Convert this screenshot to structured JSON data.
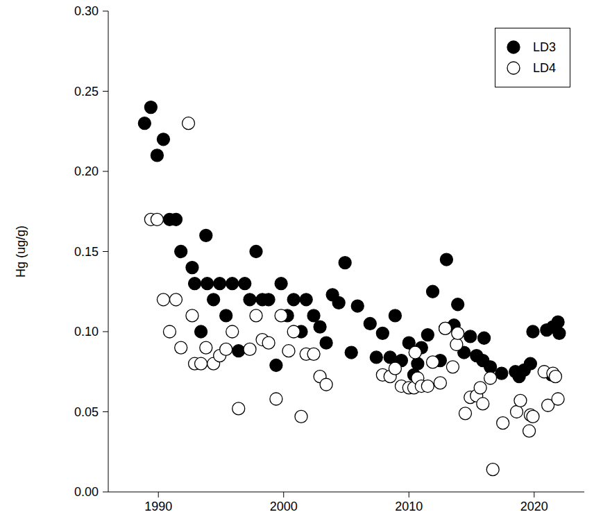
{
  "chart_data": {
    "type": "scatter",
    "ylabel": "Hg (ug/g)",
    "xlim": [
      1986,
      2024
    ],
    "xticks": [
      1990,
      2000,
      2010,
      2020
    ],
    "ylim": [
      0,
      0.3
    ],
    "yticks": [
      {
        "value": 0,
        "label": "0.00"
      },
      {
        "value": 0.05,
        "label": "0.05"
      },
      {
        "value": 0.1,
        "label": "0.10"
      },
      {
        "value": 0.15,
        "label": "0.15"
      },
      {
        "value": 0.2,
        "label": "0.20"
      },
      {
        "value": 0.25,
        "label": "0.25"
      },
      {
        "value": 0.3,
        "label": "0.30"
      }
    ],
    "grid": false,
    "legend": "top-right",
    "series": [
      {
        "name": "LD3",
        "color": "#000000",
        "marker": "filled_circle",
        "x": [
          1988.9,
          1989.4,
          1989.9,
          1990.4,
          1990.9,
          1991.4,
          1991.8,
          1992.7,
          1992.9,
          1993.4,
          1993.8,
          1993.9,
          1994.4,
          1994.9,
          1995.4,
          1995.9,
          1996.4,
          1996.9,
          1997.3,
          1997.8,
          1998.3,
          1998.8,
          1999.4,
          1999.8,
          2000.3,
          2000.8,
          2001.4,
          2001.8,
          2002.4,
          2002.9,
          2003.4,
          2003.9,
          2004.4,
          2004.9,
          2005.4,
          2005.9,
          2006.9,
          2007.4,
          2007.9,
          2008.5,
          2008.9,
          2009.4,
          2010.0,
          2010.4,
          2010.7,
          2011.0,
          2011.5,
          2011.9,
          2012.5,
          2012.9,
          2013.0,
          2013.6,
          2013.9,
          2014.4,
          2014.9,
          2015.4,
          2015.9,
          2016.0,
          2016.5,
          2017.4,
          2018.5,
          2018.8,
          2019.2,
          2019.7,
          2019.9,
          2021.0,
          2021.4,
          2021.5,
          2021.9,
          2022.0
        ],
        "values": [
          0.23,
          0.24,
          0.21,
          0.22,
          0.17,
          0.17,
          0.15,
          0.14,
          0.13,
          0.1,
          0.16,
          0.13,
          0.12,
          0.13,
          0.11,
          0.13,
          0.088,
          0.13,
          0.12,
          0.15,
          0.12,
          0.12,
          0.079,
          0.13,
          0.11,
          0.12,
          0.1,
          0.12,
          0.11,
          0.103,
          0.093,
          0.123,
          0.118,
          0.143,
          0.087,
          0.116,
          0.105,
          0.084,
          0.099,
          0.084,
          0.11,
          0.082,
          0.093,
          0.073,
          0.08,
          0.09,
          0.098,
          0.125,
          0.082,
          0.102,
          0.145,
          0.104,
          0.117,
          0.087,
          0.097,
          0.085,
          0.082,
          0.096,
          0.078,
          0.074,
          0.075,
          0.072,
          0.076,
          0.08,
          0.1,
          0.101,
          0.073,
          0.103,
          0.106,
          0.099
        ]
      },
      {
        "name": "LD4",
        "color": "#000000",
        "marker": "open_circle",
        "x": [
          1989.4,
          1989.9,
          1990.4,
          1990.9,
          1991.4,
          1991.8,
          1992.4,
          1992.7,
          1992.9,
          1993.4,
          1993.8,
          1994.4,
          1994.9,
          1995.4,
          1995.9,
          1996.4,
          1997.3,
          1997.8,
          1998.3,
          1998.8,
          1999.4,
          1999.8,
          2000.4,
          2000.8,
          2001.4,
          2001.8,
          2002.4,
          2002.9,
          2003.4,
          2007.9,
          2008.5,
          2008.9,
          2009.4,
          2010.0,
          2010.4,
          2010.5,
          2010.7,
          2011.0,
          2011.5,
          2011.9,
          2012.5,
          2012.9,
          2013.5,
          2013.8,
          2013.9,
          2014.5,
          2014.9,
          2015.4,
          2015.7,
          2015.9,
          2016.5,
          2016.7,
          2017.5,
          2018.6,
          2018.9,
          2019.6,
          2019.7,
          2019.9,
          2020.8,
          2021.1,
          2021.5,
          2021.7,
          2021.9
        ],
        "values": [
          0.17,
          0.17,
          0.12,
          0.1,
          0.12,
          0.09,
          0.23,
          0.11,
          0.08,
          0.08,
          0.09,
          0.08,
          0.085,
          0.089,
          0.1,
          0.052,
          0.089,
          0.11,
          0.095,
          0.093,
          0.058,
          0.11,
          0.088,
          0.1,
          0.047,
          0.086,
          0.086,
          0.072,
          0.067,
          0.073,
          0.072,
          0.077,
          0.066,
          0.065,
          0.065,
          0.087,
          0.071,
          0.066,
          0.066,
          0.081,
          0.068,
          0.102,
          0.078,
          0.092,
          0.099,
          0.049,
          0.059,
          0.06,
          0.065,
          0.055,
          0.071,
          0.014,
          0.043,
          0.05,
          0.057,
          0.038,
          0.048,
          0.047,
          0.075,
          0.054,
          0.074,
          0.072,
          0.058
        ]
      }
    ]
  }
}
